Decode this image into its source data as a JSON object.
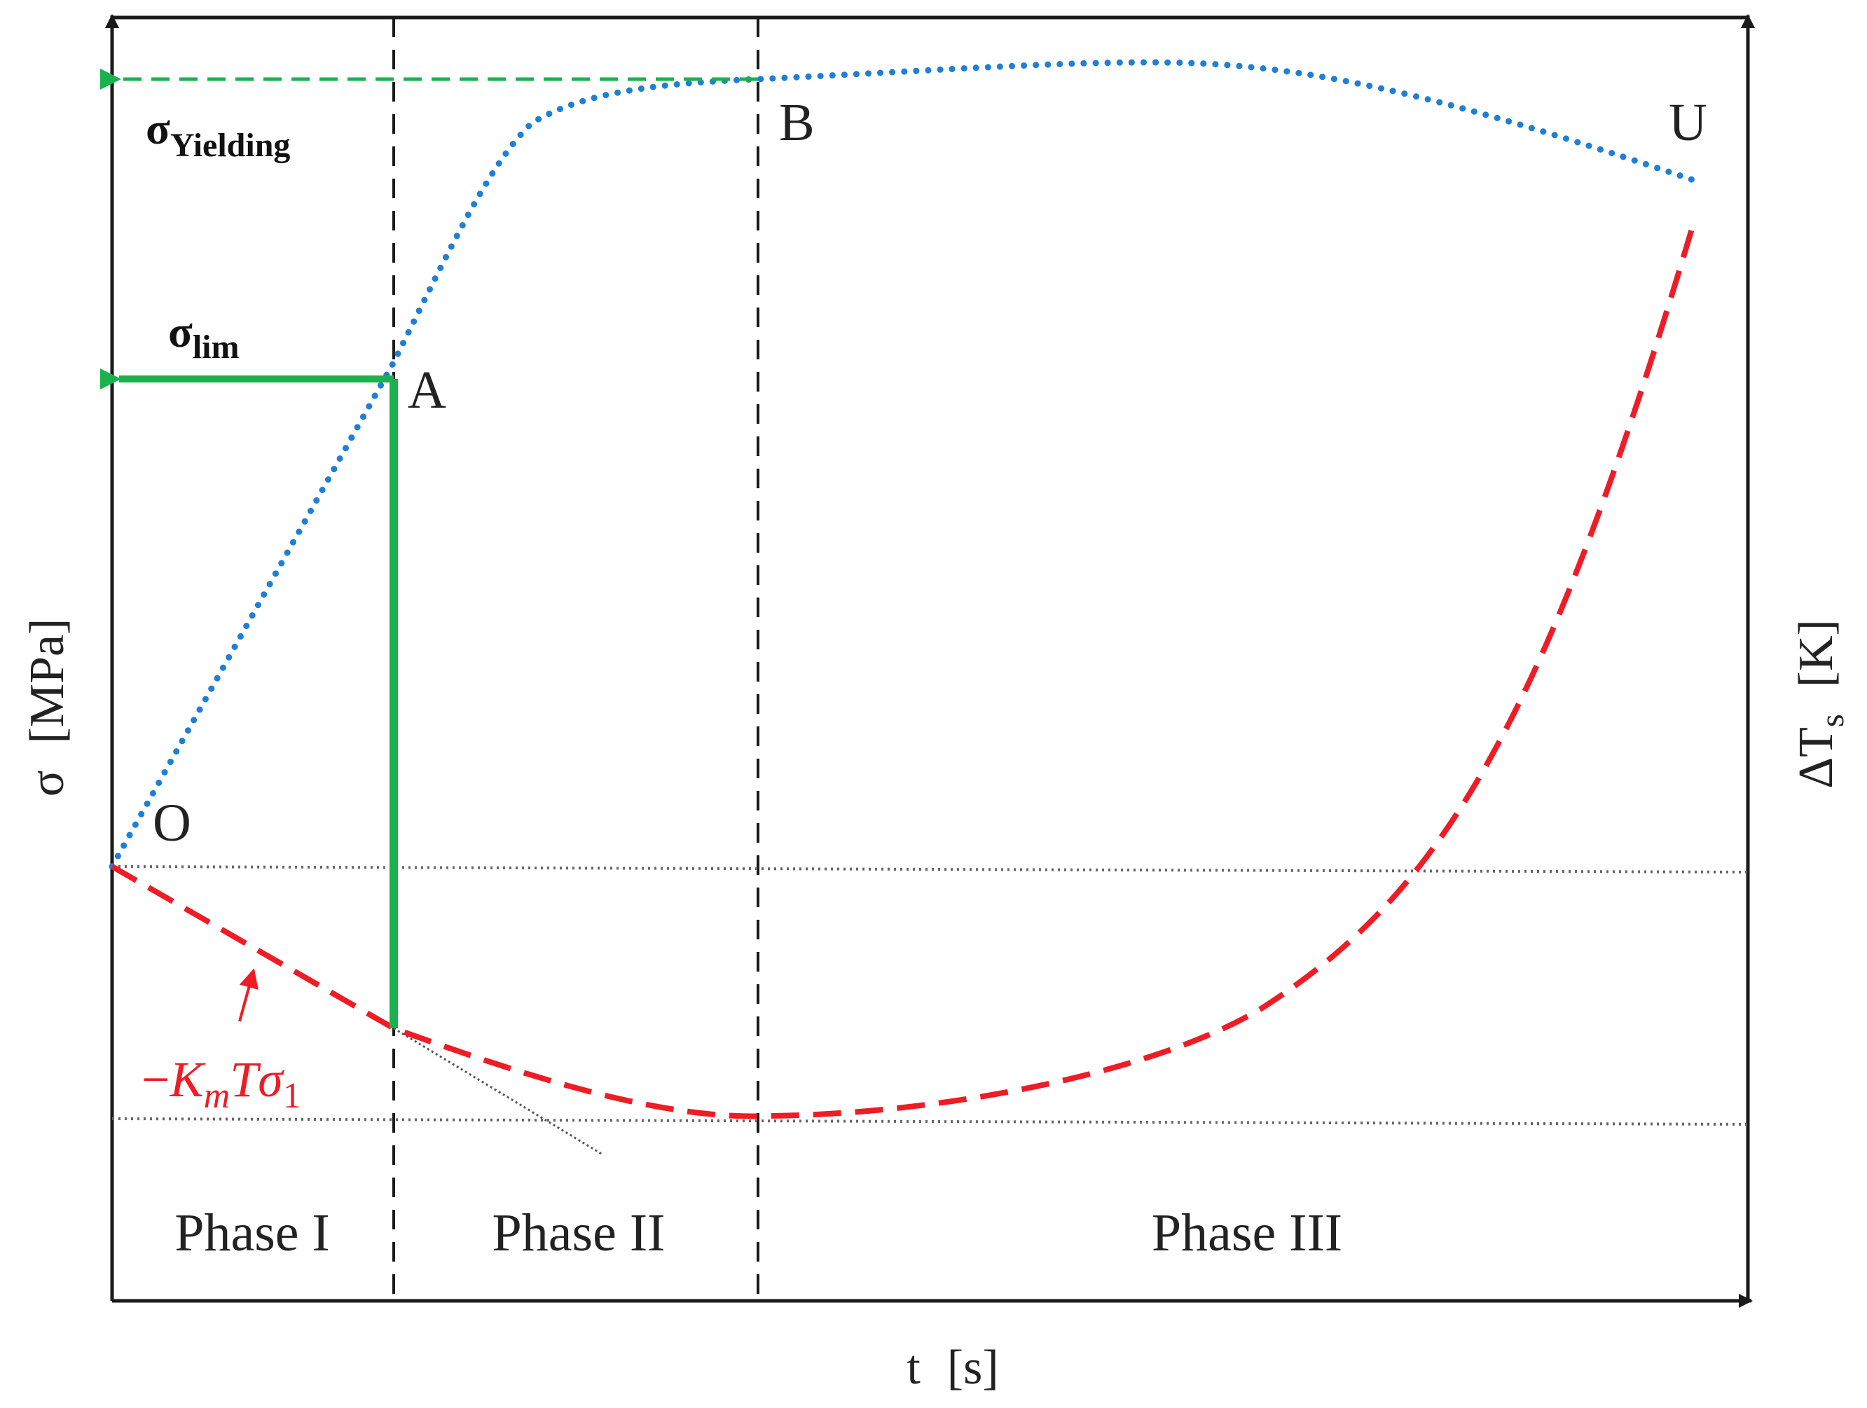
{
  "axes": {
    "y_left_label": "σ",
    "y_left_unit": "[MPa]",
    "y_right_label_delta": "ΔT",
    "y_right_label_sub": "s",
    "y_right_unit": "[K]",
    "x_label": "t",
    "x_unit": "[s]"
  },
  "points": {
    "O": "O",
    "A": "A",
    "B": "B",
    "U": "U"
  },
  "stress_labels": {
    "yield_main": "σ",
    "yield_sub": "Yielding",
    "lim_main": "σ",
    "lim_sub": "lim"
  },
  "formula": {
    "minus": "−",
    "K": "K",
    "K_sub": "m",
    "T": "T",
    "sigma": "σ",
    "sigma_sub": "1"
  },
  "phases": [
    "Phase I",
    "Phase II",
    "Phase III"
  ],
  "colors": {
    "axis": "#1a1a1a",
    "stress_curve": "#1f7fd6",
    "temperature_curve": "#ee1c25",
    "limit_marker": "#1bb14c",
    "yield_marker": "#1bb14c",
    "guide_line": "#555555"
  }
}
